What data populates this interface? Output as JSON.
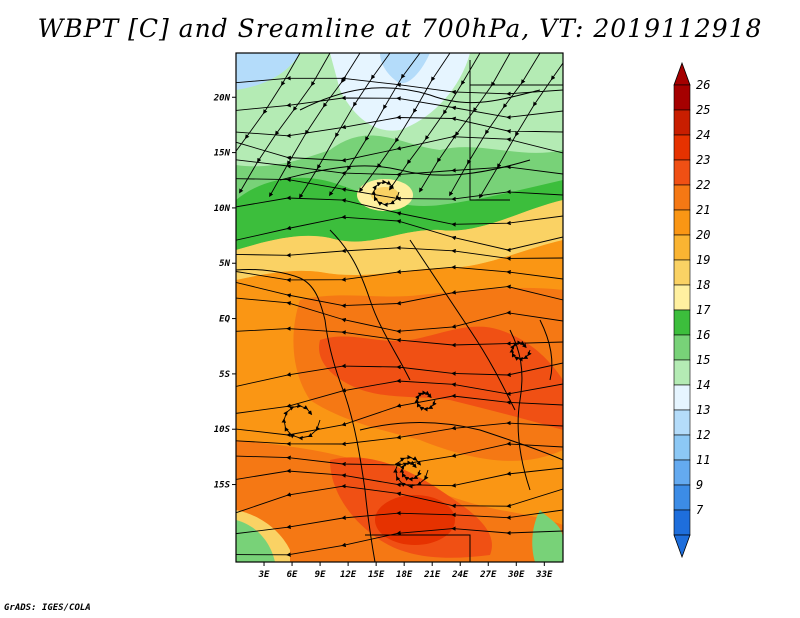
{
  "title": "WBPT [C] and Sreamline at 700hPa, VT: 2019112918",
  "credit": "GrADS: IGES/COLA",
  "map": {
    "lon_range": [
      0,
      35
    ],
    "lat_range": [
      -22,
      24
    ],
    "lon_ticks": [
      {
        "value": 3,
        "label": "3E"
      },
      {
        "value": 6,
        "label": "6E"
      },
      {
        "value": 9,
        "label": "9E"
      },
      {
        "value": 12,
        "label": "12E"
      },
      {
        "value": 15,
        "label": "15E"
      },
      {
        "value": 18,
        "label": "18E"
      },
      {
        "value": 21,
        "label": "21E"
      },
      {
        "value": 24,
        "label": "24E"
      },
      {
        "value": 27,
        "label": "27E"
      },
      {
        "value": 30,
        "label": "30E"
      },
      {
        "value": 33,
        "label": "33E"
      }
    ],
    "lat_ticks": [
      {
        "value": 20,
        "label": "20N"
      },
      {
        "value": 15,
        "label": "15N"
      },
      {
        "value": 10,
        "label": "10N"
      },
      {
        "value": 5,
        "label": "5N"
      },
      {
        "value": 0,
        "label": "EQ"
      },
      {
        "value": -5,
        "label": "5S"
      },
      {
        "value": -10,
        "label": "10S"
      },
      {
        "value": -15,
        "label": "15S"
      }
    ]
  },
  "colorbar": {
    "levels": [
      {
        "label": "26",
        "color": "#a50000"
      },
      {
        "label": "25",
        "color": "#c81e00"
      },
      {
        "label": "24",
        "color": "#e63200"
      },
      {
        "label": "23",
        "color": "#f05014"
      },
      {
        "label": "22",
        "color": "#f57814"
      },
      {
        "label": "21",
        "color": "#fa9614"
      },
      {
        "label": "20",
        "color": "#fab432"
      },
      {
        "label": "19",
        "color": "#fad264"
      },
      {
        "label": "18",
        "color": "#fff0a0"
      },
      {
        "label": "17",
        "color": "#3cbe3c"
      },
      {
        "label": "16",
        "color": "#78d278"
      },
      {
        "label": "15",
        "color": "#b4ebb4"
      },
      {
        "label": "14",
        "color": "#e6f5ff"
      },
      {
        "label": "13",
        "color": "#b4dcfa"
      },
      {
        "label": "12",
        "color": "#8cc8f5"
      },
      {
        "label": "11",
        "color": "#64aaf0"
      },
      {
        "label": "9",
        "color": "#3c8ce6"
      },
      {
        "label": "7",
        "color": "#1e6edc"
      }
    ],
    "over_color": "#a50000",
    "under_color": "#1e6edc"
  }
}
